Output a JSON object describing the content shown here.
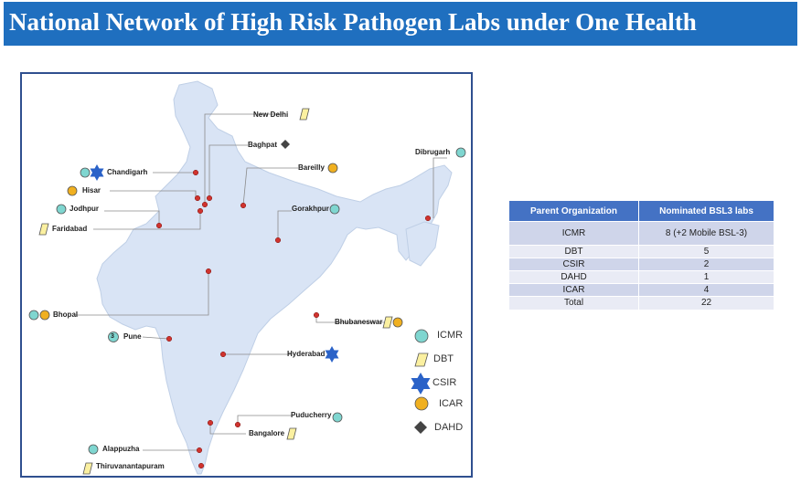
{
  "title": "National Network of High Risk Pathogen Labs under One Health",
  "map_labels": {
    "new_delhi": "New Delhi",
    "baghpat": "Baghpat",
    "dibrugarh": "Dibrugarh",
    "chandigarh": "Chandigarh",
    "bareilly": "Bareilly",
    "hisar": "Hisar",
    "jodhpur": "Jodhpur",
    "gorakhpur": "Gorakhpur",
    "faridabad": "Faridabad",
    "bhopal": "Bhopal",
    "bhubaneswar": "Bhubaneswar",
    "pune": "Pune",
    "pune_count": "3",
    "hyderabad": "Hyderabad",
    "puducherry": "Puducherry",
    "bangalore": "Bangalore",
    "alappuzha": "Alappuzha",
    "thiruvananthapuram": "Thiruvanantapuram"
  },
  "legend": {
    "icmr": "ICMR",
    "dbt": "DBT",
    "csir": "CSIR",
    "icar": "ICAR",
    "dahd": "DAHD"
  },
  "colors": {
    "icmr": "#7fd6d0",
    "dbt": "#fbf0a0",
    "csir": "#2a62c8",
    "icar": "#f0b020",
    "dahd": "#444444",
    "title_bg": "#1f6fbf",
    "map_fill": "#d9e4f5",
    "city_dot": "#d0332e"
  },
  "table": {
    "headers": [
      "Parent Organization",
      "Nominated BSL3 labs"
    ],
    "rows": [
      [
        "ICMR",
        "8 (+2 Mobile BSL-3)"
      ],
      [
        "DBT",
        "5"
      ],
      [
        "CSIR",
        "2"
      ],
      [
        "DAHD",
        "1"
      ],
      [
        "ICAR",
        "4"
      ],
      [
        "Total",
        "22"
      ]
    ]
  }
}
